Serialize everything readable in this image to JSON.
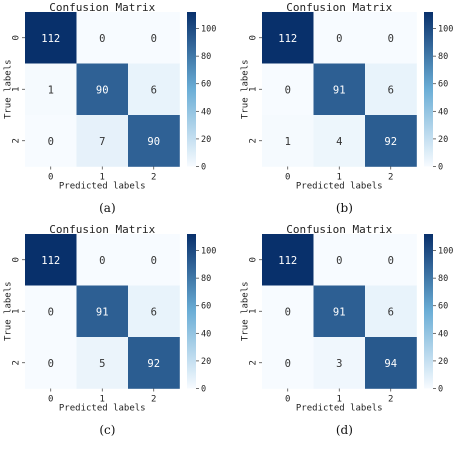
{
  "colormap": {
    "low": "#f7fbff",
    "mid": "#6baed6",
    "high": "#08306b"
  },
  "chart_data": [
    {
      "type": "heatmap",
      "title": "Confusion Matrix",
      "xlabel": "Predicted labels",
      "ylabel": "True labels",
      "x_ticks": [
        "0",
        "1",
        "2"
      ],
      "y_ticks": [
        "0",
        "1",
        "2"
      ],
      "matrix": [
        [
          112,
          0,
          0
        ],
        [
          1,
          90,
          6
        ],
        [
          0,
          7,
          90
        ]
      ],
      "colorbar_ticks": [
        "0",
        "20",
        "40",
        "60",
        "80",
        "100"
      ],
      "colorbar_range": [
        0,
        112
      ],
      "caption": "(a)"
    },
    {
      "type": "heatmap",
      "title": "Confusion Matrix",
      "xlabel": "Predicted labels",
      "ylabel": "True labels",
      "x_ticks": [
        "0",
        "1",
        "2"
      ],
      "y_ticks": [
        "0",
        "1",
        "2"
      ],
      "matrix": [
        [
          112,
          0,
          0
        ],
        [
          0,
          91,
          6
        ],
        [
          1,
          4,
          92
        ]
      ],
      "colorbar_ticks": [
        "0",
        "20",
        "40",
        "60",
        "80",
        "100"
      ],
      "colorbar_range": [
        0,
        112
      ],
      "caption": "(b)"
    },
    {
      "type": "heatmap",
      "title": "Confusion Matrix",
      "xlabel": "Predicted labels",
      "ylabel": "True labels",
      "x_ticks": [
        "0",
        "1",
        "2"
      ],
      "y_ticks": [
        "0",
        "1",
        "2"
      ],
      "matrix": [
        [
          112,
          0,
          0
        ],
        [
          0,
          91,
          6
        ],
        [
          0,
          5,
          92
        ]
      ],
      "colorbar_ticks": [
        "0",
        "20",
        "40",
        "60",
        "80",
        "100"
      ],
      "colorbar_range": [
        0,
        112
      ],
      "caption": "(c)"
    },
    {
      "type": "heatmap",
      "title": "Confusion Matrix",
      "xlabel": "Predicted labels",
      "ylabel": "True labels",
      "x_ticks": [
        "0",
        "1",
        "2"
      ],
      "y_ticks": [
        "0",
        "1",
        "2"
      ],
      "matrix": [
        [
          112,
          0,
          0
        ],
        [
          0,
          91,
          6
        ],
        [
          0,
          3,
          94
        ]
      ],
      "colorbar_ticks": [
        "0",
        "20",
        "40",
        "60",
        "80",
        "100"
      ],
      "colorbar_range": [
        0,
        112
      ],
      "caption": "(d)"
    }
  ]
}
